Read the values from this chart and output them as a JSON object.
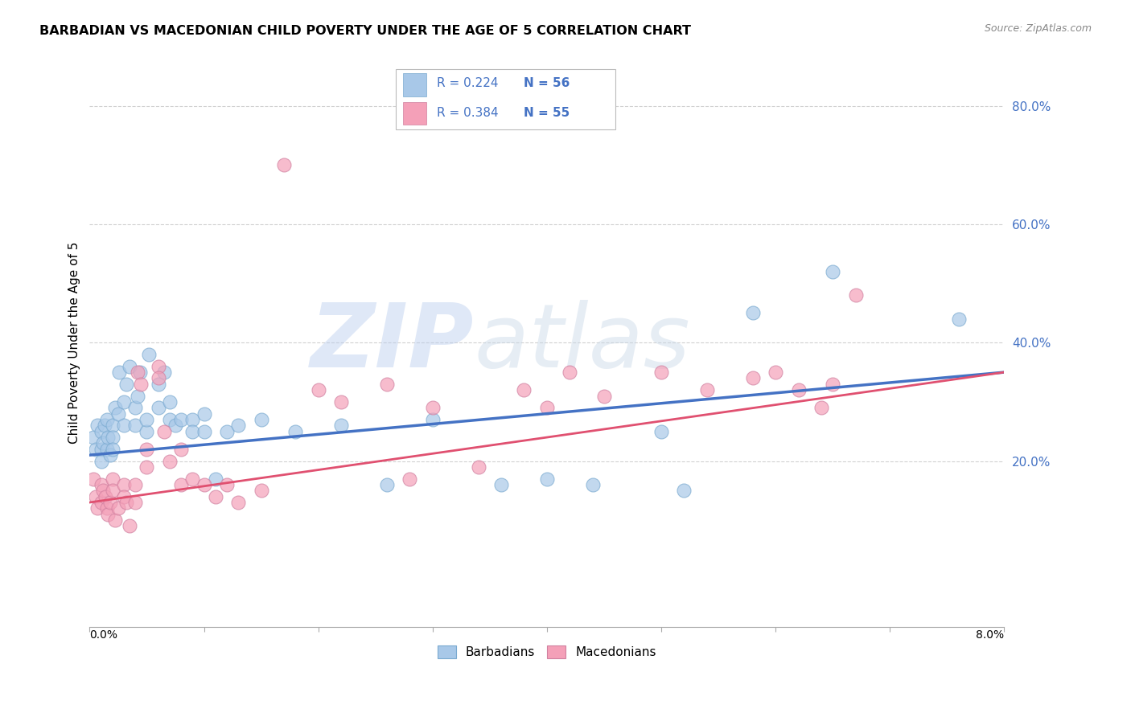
{
  "title": "BARBADIAN VS MACEDONIAN CHILD POVERTY UNDER THE AGE OF 5 CORRELATION CHART",
  "source": "Source: ZipAtlas.com",
  "ylabel": "Child Poverty Under the Age of 5",
  "ytick_labels": [
    "20.0%",
    "40.0%",
    "60.0%",
    "80.0%"
  ],
  "ytick_values": [
    0.2,
    0.4,
    0.6,
    0.8
  ],
  "xmin": 0.0,
  "xmax": 0.08,
  "ymin": -0.08,
  "ymax": 0.88,
  "legend_label_blue": "Barbadians",
  "legend_label_pink": "Macedonians",
  "color_blue": "#A8C8E8",
  "color_pink": "#F4A0B8",
  "color_blue_line": "#4472C4",
  "color_pink_line": "#E05070",
  "color_legend_text": "#4472C4",
  "watermark_zip": "ZIP",
  "watermark_atlas": "atlas",
  "background_color": "#FFFFFF",
  "grid_color": "#CCCCCC",
  "blue_x": [
    0.0003,
    0.0005,
    0.0007,
    0.001,
    0.001,
    0.001,
    0.0012,
    0.0013,
    0.0015,
    0.0015,
    0.0016,
    0.0018,
    0.002,
    0.002,
    0.002,
    0.0022,
    0.0025,
    0.0026,
    0.003,
    0.003,
    0.0032,
    0.0035,
    0.004,
    0.004,
    0.0042,
    0.0044,
    0.005,
    0.005,
    0.0052,
    0.006,
    0.006,
    0.0065,
    0.007,
    0.007,
    0.0075,
    0.008,
    0.009,
    0.009,
    0.01,
    0.01,
    0.011,
    0.012,
    0.013,
    0.015,
    0.018,
    0.022,
    0.026,
    0.03,
    0.036,
    0.04,
    0.044,
    0.05,
    0.052,
    0.058,
    0.065,
    0.076
  ],
  "blue_y": [
    0.24,
    0.22,
    0.26,
    0.25,
    0.22,
    0.2,
    0.23,
    0.26,
    0.27,
    0.22,
    0.24,
    0.21,
    0.26,
    0.24,
    0.22,
    0.29,
    0.28,
    0.35,
    0.3,
    0.26,
    0.33,
    0.36,
    0.29,
    0.26,
    0.31,
    0.35,
    0.25,
    0.27,
    0.38,
    0.33,
    0.29,
    0.35,
    0.27,
    0.3,
    0.26,
    0.27,
    0.27,
    0.25,
    0.28,
    0.25,
    0.17,
    0.25,
    0.26,
    0.27,
    0.25,
    0.26,
    0.16,
    0.27,
    0.16,
    0.17,
    0.16,
    0.25,
    0.15,
    0.45,
    0.52,
    0.44
  ],
  "pink_x": [
    0.0003,
    0.0005,
    0.0007,
    0.001,
    0.001,
    0.0012,
    0.0014,
    0.0015,
    0.0016,
    0.0018,
    0.002,
    0.002,
    0.0022,
    0.0025,
    0.003,
    0.003,
    0.0032,
    0.0035,
    0.004,
    0.004,
    0.0042,
    0.0045,
    0.005,
    0.005,
    0.006,
    0.006,
    0.0065,
    0.007,
    0.008,
    0.008,
    0.009,
    0.01,
    0.011,
    0.012,
    0.013,
    0.015,
    0.017,
    0.02,
    0.022,
    0.026,
    0.028,
    0.03,
    0.034,
    0.038,
    0.04,
    0.042,
    0.045,
    0.05,
    0.054,
    0.058,
    0.06,
    0.062,
    0.064,
    0.065,
    0.067
  ],
  "pink_y": [
    0.17,
    0.14,
    0.12,
    0.16,
    0.13,
    0.15,
    0.14,
    0.12,
    0.11,
    0.13,
    0.17,
    0.15,
    0.1,
    0.12,
    0.16,
    0.14,
    0.13,
    0.09,
    0.16,
    0.13,
    0.35,
    0.33,
    0.22,
    0.19,
    0.36,
    0.34,
    0.25,
    0.2,
    0.22,
    0.16,
    0.17,
    0.16,
    0.14,
    0.16,
    0.13,
    0.15,
    0.7,
    0.32,
    0.3,
    0.33,
    0.17,
    0.29,
    0.19,
    0.32,
    0.29,
    0.35,
    0.31,
    0.35,
    0.32,
    0.34,
    0.35,
    0.32,
    0.29,
    0.33,
    0.48
  ]
}
